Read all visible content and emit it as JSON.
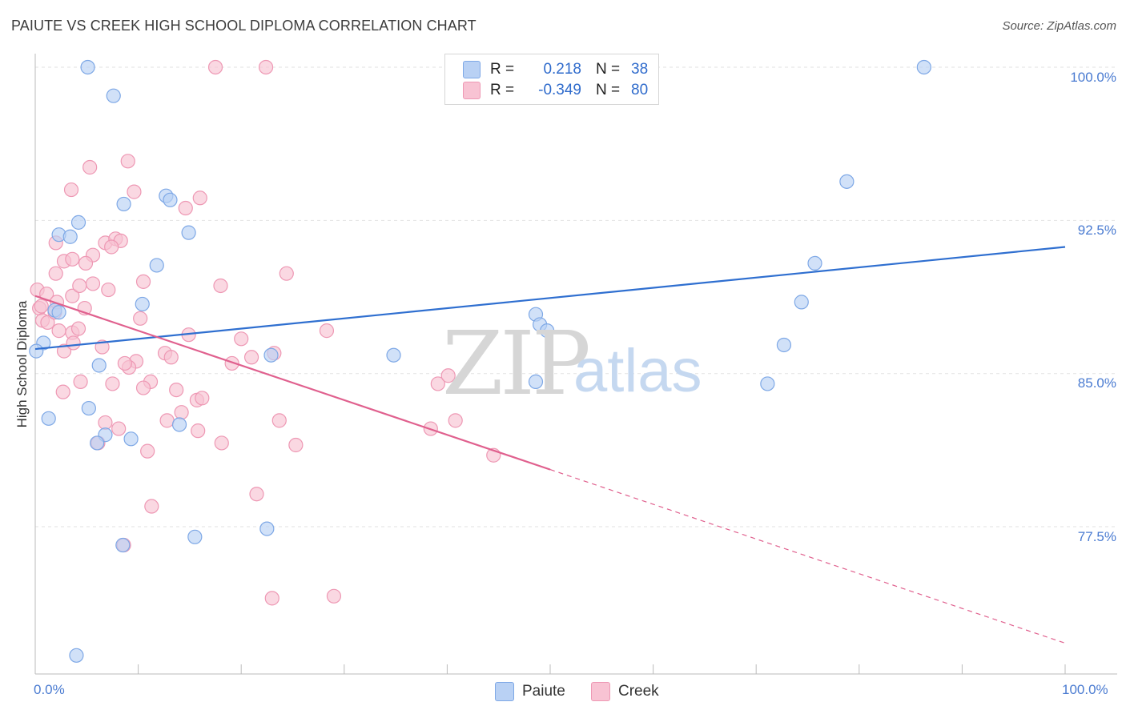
{
  "title": "PAIUTE VS CREEK HIGH SCHOOL DIPLOMA CORRELATION CHART",
  "source": "Source: ZipAtlas.com",
  "watermark": {
    "zip": "ZIP",
    "atlas": "atlas"
  },
  "legend": {
    "rows": [
      {
        "r_label": "R =",
        "r_value": "0.218",
        "n_label": "N =",
        "n_value": "38"
      },
      {
        "r_label": "R =",
        "r_value": "-0.349",
        "n_label": "N =",
        "n_value": "80"
      }
    ]
  },
  "colors": {
    "paiute_fill": "#b9d1f4",
    "paiute_stroke": "#7ea8e6",
    "paiute_line": "#2f6fd0",
    "creek_fill": "#f8c3d3",
    "creek_stroke": "#ee98b4",
    "creek_line": "#e0608e",
    "grid": "#e2e2e2",
    "tick_text": "#4a7bd1"
  },
  "chart_data": {
    "type": "scatter",
    "title": "PAIUTE VS CREEK HIGH SCHOOL DIPLOMA CORRELATION CHART",
    "xlabel": "",
    "ylabel": "High School Diploma",
    "xlim": [
      0,
      100
    ],
    "ylim": [
      70.8,
      100.9
    ],
    "x_tick_labels": [
      "0.0%",
      "100.0%"
    ],
    "y_ticks": [
      {
        "value": 100.0,
        "label": "100.0%"
      },
      {
        "value": 92.5,
        "label": "92.5%"
      },
      {
        "value": 85.0,
        "label": "85.0%"
      },
      {
        "value": 77.5,
        "label": "77.5%"
      }
    ],
    "series": [
      {
        "name": "Paiute",
        "r": 0.218,
        "n": 38,
        "trend": {
          "x0": 0,
          "y0": 86.2,
          "x1": 100,
          "y1": 91.2
        },
        "points": [
          [
            5.1,
            100.0
          ],
          [
            7.6,
            98.6
          ],
          [
            86.3,
            100.0
          ],
          [
            8.6,
            93.3
          ],
          [
            12.7,
            93.7
          ],
          [
            13.1,
            93.5
          ],
          [
            4.2,
            92.4
          ],
          [
            2.3,
            91.8
          ],
          [
            3.4,
            91.7
          ],
          [
            14.9,
            91.9
          ],
          [
            11.8,
            90.3
          ],
          [
            1.9,
            88.1
          ],
          [
            2.3,
            88.0
          ],
          [
            10.4,
            88.4
          ],
          [
            0.8,
            86.5
          ],
          [
            0.1,
            86.1
          ],
          [
            22.9,
            85.9
          ],
          [
            34.8,
            85.9
          ],
          [
            6.2,
            85.4
          ],
          [
            48.6,
            87.9
          ],
          [
            49.0,
            87.4
          ],
          [
            49.7,
            87.1
          ],
          [
            48.6,
            84.6
          ],
          [
            75.7,
            90.4
          ],
          [
            78.8,
            94.4
          ],
          [
            74.4,
            88.5
          ],
          [
            72.7,
            86.4
          ],
          [
            71.1,
            84.5
          ],
          [
            5.2,
            83.3
          ],
          [
            1.3,
            82.8
          ],
          [
            14.0,
            82.5
          ],
          [
            6.8,
            82.0
          ],
          [
            9.3,
            81.8
          ],
          [
            6.0,
            81.6
          ],
          [
            15.5,
            77.0
          ],
          [
            22.5,
            77.4
          ],
          [
            8.5,
            76.6
          ],
          [
            4.0,
            71.2
          ]
        ]
      },
      {
        "name": "Creek",
        "r": -0.349,
        "n": 80,
        "trend_solid": {
          "x0": 0,
          "y0": 88.8,
          "x1": 50,
          "y1": 80.3
        },
        "trend_dashed": {
          "x0": 50,
          "y0": 80.3,
          "x1": 100,
          "y1": 71.8
        },
        "points": [
          [
            17.5,
            100.0
          ],
          [
            22.4,
            100.0
          ],
          [
            9.0,
            95.4
          ],
          [
            5.3,
            95.1
          ],
          [
            3.5,
            94.0
          ],
          [
            9.6,
            93.9
          ],
          [
            16.0,
            93.6
          ],
          [
            14.6,
            93.1
          ],
          [
            2.0,
            91.4
          ],
          [
            6.8,
            91.4
          ],
          [
            7.8,
            91.6
          ],
          [
            8.3,
            91.5
          ],
          [
            7.4,
            91.2
          ],
          [
            5.6,
            90.8
          ],
          [
            2.8,
            90.5
          ],
          [
            4.9,
            90.4
          ],
          [
            3.6,
            90.6
          ],
          [
            2.0,
            89.9
          ],
          [
            0.2,
            89.1
          ],
          [
            1.1,
            88.9
          ],
          [
            0.4,
            88.2
          ],
          [
            0.7,
            87.6
          ],
          [
            1.2,
            87.5
          ],
          [
            1.9,
            88.0
          ],
          [
            2.1,
            88.5
          ],
          [
            3.6,
            88.8
          ],
          [
            4.8,
            88.2
          ],
          [
            5.6,
            89.4
          ],
          [
            4.3,
            89.3
          ],
          [
            7.1,
            89.1
          ],
          [
            10.5,
            89.5
          ],
          [
            18.0,
            89.3
          ],
          [
            24.4,
            89.9
          ],
          [
            10.2,
            87.7
          ],
          [
            3.6,
            87.0
          ],
          [
            4.2,
            87.2
          ],
          [
            2.3,
            87.1
          ],
          [
            2.8,
            86.1
          ],
          [
            3.7,
            86.5
          ],
          [
            6.5,
            86.3
          ],
          [
            12.6,
            86.0
          ],
          [
            14.9,
            86.9
          ],
          [
            20.0,
            86.7
          ],
          [
            23.2,
            86.0
          ],
          [
            21.0,
            85.8
          ],
          [
            13.2,
            85.8
          ],
          [
            9.8,
            85.6
          ],
          [
            9.1,
            85.3
          ],
          [
            8.7,
            85.5
          ],
          [
            19.1,
            85.5
          ],
          [
            28.3,
            87.1
          ],
          [
            7.5,
            84.5
          ],
          [
            4.4,
            84.6
          ],
          [
            11.2,
            84.6
          ],
          [
            10.5,
            84.3
          ],
          [
            2.7,
            84.1
          ],
          [
            13.7,
            84.2
          ],
          [
            15.7,
            83.7
          ],
          [
            16.2,
            83.8
          ],
          [
            39.1,
            84.5
          ],
          [
            40.1,
            84.9
          ],
          [
            14.2,
            83.1
          ],
          [
            12.8,
            82.7
          ],
          [
            23.7,
            82.7
          ],
          [
            6.8,
            82.6
          ],
          [
            8.1,
            82.3
          ],
          [
            15.8,
            82.2
          ],
          [
            38.4,
            82.3
          ],
          [
            40.8,
            82.7
          ],
          [
            18.1,
            81.6
          ],
          [
            25.3,
            81.5
          ],
          [
            6.1,
            81.6
          ],
          [
            10.9,
            81.2
          ],
          [
            44.5,
            81.0
          ],
          [
            21.5,
            79.1
          ],
          [
            11.3,
            78.5
          ],
          [
            8.6,
            76.6
          ],
          [
            23.0,
            74.0
          ],
          [
            29.0,
            74.1
          ],
          [
            0.6,
            88.3
          ]
        ]
      }
    ]
  }
}
